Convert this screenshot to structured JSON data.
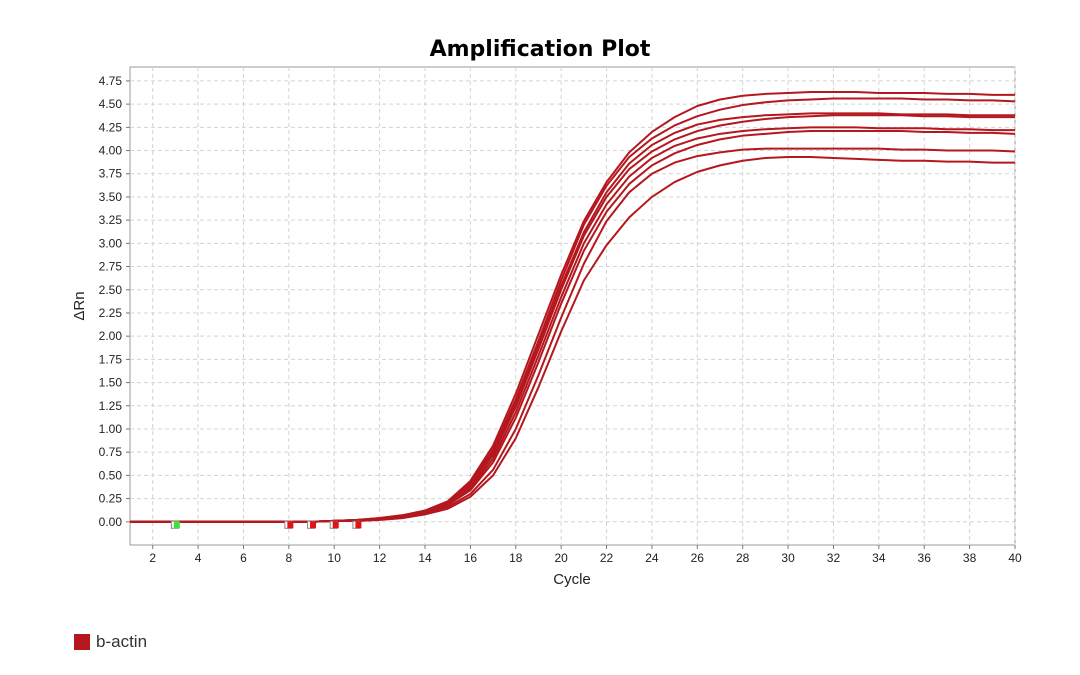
{
  "chart_data": {
    "type": "line",
    "title": "Amplification Plot",
    "xlabel": "Cycle",
    "ylabel": "ΔRn",
    "xlim": [
      1,
      40
    ],
    "ylim": [
      -0.25,
      4.9
    ],
    "x_ticks": [
      2,
      4,
      6,
      8,
      10,
      12,
      14,
      16,
      18,
      20,
      22,
      24,
      26,
      28,
      30,
      32,
      34,
      36,
      38,
      40
    ],
    "y_ticks": [
      0.0,
      0.25,
      0.5,
      0.75,
      1.0,
      1.25,
      1.5,
      1.75,
      2.0,
      2.25,
      2.5,
      2.75,
      3.0,
      3.25,
      3.5,
      3.75,
      4.0,
      4.25,
      4.5,
      4.75
    ],
    "grid": true,
    "legend_position": "bottom-left",
    "series_color": "#b5171e",
    "x": [
      1,
      2,
      3,
      4,
      5,
      6,
      7,
      8,
      9,
      10,
      11,
      12,
      13,
      14,
      15,
      16,
      17,
      18,
      19,
      20,
      21,
      22,
      23,
      24,
      25,
      26,
      27,
      28,
      29,
      30,
      31,
      32,
      33,
      34,
      35,
      36,
      37,
      38,
      39,
      40
    ],
    "series": [
      {
        "name": "b-actin",
        "values": [
          0.0,
          0.0,
          0.0,
          0.0,
          0.0,
          0.0,
          0.0,
          0.0,
          0.0,
          0.01,
          0.02,
          0.04,
          0.07,
          0.12,
          0.22,
          0.42,
          0.78,
          1.32,
          1.95,
          2.6,
          3.2,
          3.62,
          3.93,
          4.13,
          4.27,
          4.37,
          4.44,
          4.49,
          4.52,
          4.54,
          4.55,
          4.56,
          4.56,
          4.56,
          4.56,
          4.55,
          4.55,
          4.54,
          4.54,
          4.53
        ]
      },
      {
        "name": "b-actin",
        "values": [
          0.0,
          0.0,
          0.0,
          0.0,
          0.0,
          0.0,
          0.0,
          0.0,
          0.0,
          0.01,
          0.02,
          0.03,
          0.06,
          0.11,
          0.2,
          0.38,
          0.72,
          1.24,
          1.86,
          2.5,
          3.08,
          3.5,
          3.8,
          3.99,
          4.12,
          4.21,
          4.27,
          4.31,
          4.34,
          4.36,
          4.37,
          4.38,
          4.38,
          4.38,
          4.38,
          4.37,
          4.37,
          4.36,
          4.36,
          4.36
        ]
      },
      {
        "name": "b-actin",
        "values": [
          0.0,
          0.0,
          0.0,
          0.0,
          0.0,
          0.0,
          0.0,
          0.0,
          0.0,
          0.01,
          0.01,
          0.03,
          0.05,
          0.1,
          0.18,
          0.34,
          0.64,
          1.12,
          1.72,
          2.35,
          2.92,
          3.34,
          3.64,
          3.84,
          3.97,
          4.06,
          4.12,
          4.16,
          4.18,
          4.2,
          4.21,
          4.21,
          4.21,
          4.21,
          4.21,
          4.2,
          4.2,
          4.19,
          4.19,
          4.18
        ]
      },
      {
        "name": "b-actin",
        "values": [
          0.0,
          0.0,
          0.0,
          0.0,
          0.0,
          0.0,
          0.0,
          0.0,
          0.0,
          0.01,
          0.01,
          0.03,
          0.05,
          0.09,
          0.16,
          0.3,
          0.56,
          1.0,
          1.58,
          2.2,
          2.78,
          3.24,
          3.55,
          3.75,
          3.87,
          3.94,
          3.98,
          4.01,
          4.02,
          4.02,
          4.02,
          4.02,
          4.02,
          4.02,
          4.01,
          4.01,
          4.0,
          4.0,
          4.0,
          3.99
        ]
      },
      {
        "name": "b-actin",
        "values": [
          0.0,
          0.0,
          0.0,
          0.0,
          0.0,
          0.0,
          0.0,
          0.0,
          0.0,
          0.01,
          0.01,
          0.02,
          0.04,
          0.08,
          0.14,
          0.27,
          0.5,
          0.9,
          1.45,
          2.05,
          2.6,
          2.98,
          3.28,
          3.5,
          3.66,
          3.77,
          3.84,
          3.89,
          3.92,
          3.93,
          3.93,
          3.92,
          3.91,
          3.9,
          3.89,
          3.89,
          3.88,
          3.88,
          3.87,
          3.87
        ]
      },
      {
        "name": "b-actin",
        "values": [
          0.0,
          0.0,
          0.0,
          0.0,
          0.0,
          0.0,
          0.0,
          0.0,
          0.0,
          0.01,
          0.02,
          0.04,
          0.07,
          0.12,
          0.22,
          0.44,
          0.82,
          1.38,
          2.02,
          2.66,
          3.24,
          3.66,
          3.98,
          4.2,
          4.36,
          4.48,
          4.55,
          4.59,
          4.61,
          4.62,
          4.63,
          4.63,
          4.63,
          4.62,
          4.62,
          4.62,
          4.61,
          4.61,
          4.6,
          4.6
        ]
      },
      {
        "name": "b-actin",
        "values": [
          0.0,
          0.0,
          0.0,
          0.0,
          0.0,
          0.0,
          0.0,
          0.0,
          0.0,
          0.01,
          0.02,
          0.04,
          0.06,
          0.11,
          0.21,
          0.4,
          0.75,
          1.28,
          1.9,
          2.54,
          3.12,
          3.55,
          3.86,
          4.06,
          4.19,
          4.28,
          4.33,
          4.36,
          4.38,
          4.39,
          4.4,
          4.4,
          4.4,
          4.4,
          4.39,
          4.39,
          4.39,
          4.38,
          4.38,
          4.38
        ]
      },
      {
        "name": "b-actin",
        "values": [
          0.0,
          0.0,
          0.0,
          0.0,
          0.0,
          0.0,
          0.0,
          0.0,
          0.0,
          0.01,
          0.02,
          0.03,
          0.06,
          0.1,
          0.19,
          0.36,
          0.68,
          1.18,
          1.79,
          2.42,
          3.0,
          3.42,
          3.72,
          3.92,
          4.05,
          4.13,
          4.18,
          4.21,
          4.23,
          4.24,
          4.25,
          4.25,
          4.25,
          4.24,
          4.24,
          4.24,
          4.23,
          4.23,
          4.22,
          4.22
        ]
      }
    ]
  },
  "baseline_markers": {
    "start_color": "#3fe03f",
    "end_color": "#e01414",
    "start_cycle": 3,
    "end_cycles": [
      8,
      9,
      10,
      11
    ]
  }
}
